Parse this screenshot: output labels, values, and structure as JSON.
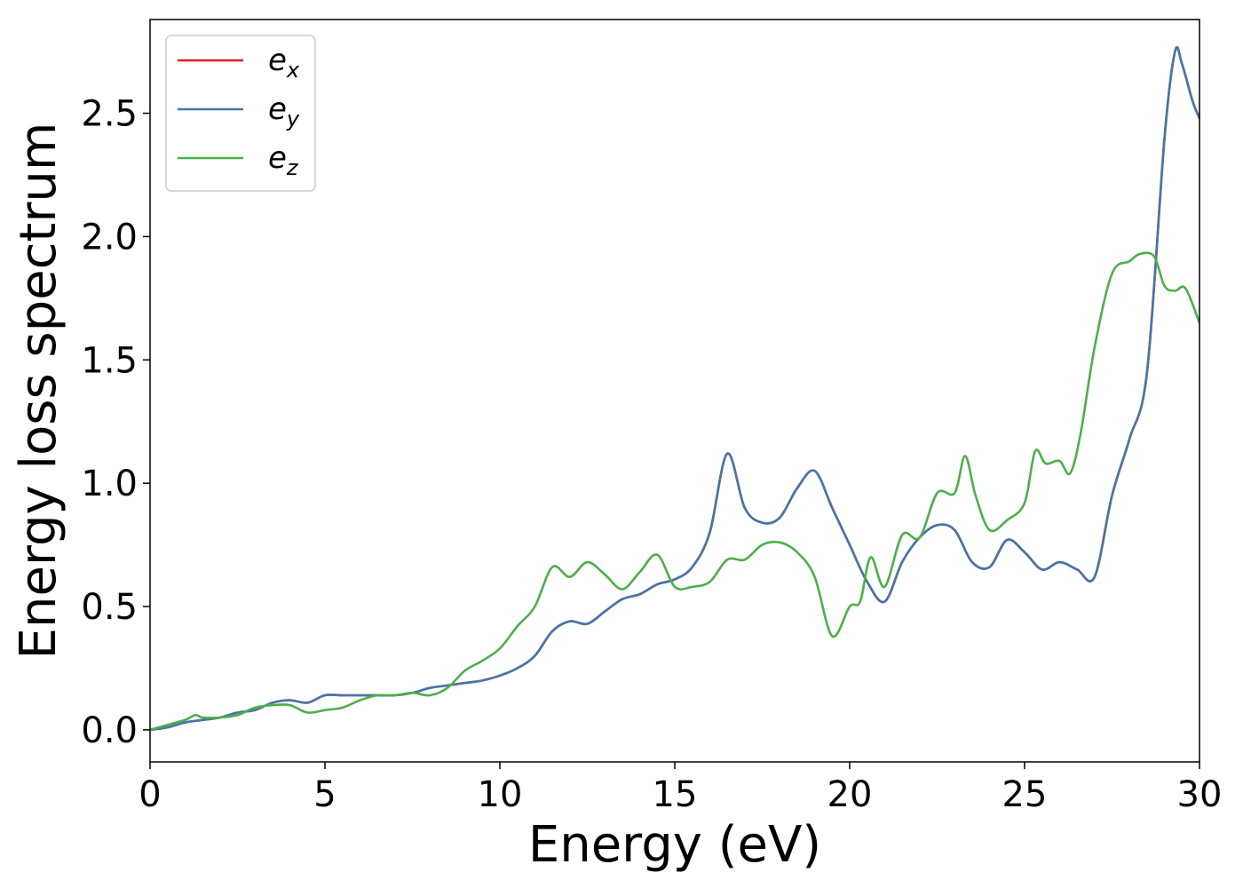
{
  "chart_data": {
    "type": "line",
    "xlabel": "Energy (eV)",
    "ylabel": "Energy loss spectrum",
    "xlim": [
      0,
      30
    ],
    "ylim": [
      -0.13,
      2.88
    ],
    "x_ticks": [
      "0",
      "5",
      "10",
      "15",
      "20",
      "25",
      "30"
    ],
    "y_ticks": [
      "0.0",
      "0.5",
      "1.0",
      "1.5",
      "2.0",
      "2.5"
    ],
    "grid": false,
    "legend_position": "top-left",
    "series": [
      {
        "name": "e_x",
        "legend_base": "e",
        "legend_sub": "x",
        "color": "#e41a1c",
        "x": [
          0,
          0.5,
          1,
          1.5,
          2,
          2.5,
          3,
          3.5,
          4,
          4.5,
          5,
          5.5,
          6,
          6.5,
          7,
          7.5,
          8,
          8.5,
          9,
          9.5,
          10,
          10.5,
          11,
          11.5,
          12,
          12.5,
          13,
          13.5,
          14,
          14.5,
          15,
          15.5,
          16,
          16.5,
          17,
          17.5,
          18,
          18.5,
          19,
          19.5,
          20,
          20.5,
          21,
          21.5,
          22,
          22.5,
          23,
          23.5,
          24,
          24.5,
          25,
          25.5,
          26,
          26.5,
          27,
          27.5,
          28,
          28.5,
          29,
          29.3,
          29.5,
          29.8,
          30
        ],
        "y": [
          0,
          0.01,
          0.03,
          0.04,
          0.05,
          0.07,
          0.08,
          0.11,
          0.12,
          0.11,
          0.14,
          0.14,
          0.14,
          0.14,
          0.14,
          0.15,
          0.17,
          0.18,
          0.19,
          0.2,
          0.22,
          0.25,
          0.3,
          0.4,
          0.44,
          0.43,
          0.48,
          0.53,
          0.55,
          0.59,
          0.61,
          0.66,
          0.8,
          1.12,
          0.9,
          0.84,
          0.86,
          0.98,
          1.05,
          0.9,
          0.75,
          0.6,
          0.52,
          0.68,
          0.78,
          0.83,
          0.81,
          0.68,
          0.66,
          0.77,
          0.72,
          0.65,
          0.68,
          0.65,
          0.62,
          0.95,
          1.18,
          1.45,
          2.4,
          2.75,
          2.7,
          2.55,
          2.48
        ]
      },
      {
        "name": "e_y",
        "legend_base": "e",
        "legend_sub": "y",
        "color": "#4477aa",
        "x": [
          0,
          0.5,
          1,
          1.5,
          2,
          2.5,
          3,
          3.5,
          4,
          4.5,
          5,
          5.5,
          6,
          6.5,
          7,
          7.5,
          8,
          8.5,
          9,
          9.5,
          10,
          10.5,
          11,
          11.5,
          12,
          12.5,
          13,
          13.5,
          14,
          14.5,
          15,
          15.5,
          16,
          16.5,
          17,
          17.5,
          18,
          18.5,
          19,
          19.5,
          20,
          20.5,
          21,
          21.5,
          22,
          22.5,
          23,
          23.5,
          24,
          24.5,
          25,
          25.5,
          26,
          26.5,
          27,
          27.5,
          28,
          28.5,
          29,
          29.3,
          29.5,
          29.8,
          30
        ],
        "y": [
          0,
          0.01,
          0.03,
          0.04,
          0.05,
          0.07,
          0.08,
          0.11,
          0.12,
          0.11,
          0.14,
          0.14,
          0.14,
          0.14,
          0.14,
          0.15,
          0.17,
          0.18,
          0.19,
          0.2,
          0.22,
          0.25,
          0.3,
          0.4,
          0.44,
          0.43,
          0.48,
          0.53,
          0.55,
          0.59,
          0.61,
          0.66,
          0.8,
          1.12,
          0.9,
          0.84,
          0.86,
          0.98,
          1.05,
          0.9,
          0.75,
          0.6,
          0.52,
          0.68,
          0.78,
          0.83,
          0.81,
          0.68,
          0.66,
          0.77,
          0.72,
          0.65,
          0.68,
          0.65,
          0.62,
          0.95,
          1.18,
          1.45,
          2.4,
          2.75,
          2.7,
          2.55,
          2.48
        ]
      },
      {
        "name": "e_z",
        "legend_base": "e",
        "legend_sub": "z",
        "color": "#4daf4a",
        "x": [
          0,
          0.5,
          1,
          1.3,
          1.5,
          2,
          2.5,
          3,
          3.5,
          4,
          4.5,
          5,
          5.5,
          6,
          6.5,
          7,
          7.5,
          8,
          8.5,
          9,
          9.5,
          10,
          10.5,
          11,
          11.5,
          12,
          12.5,
          13,
          13.5,
          14,
          14.5,
          15,
          15.5,
          16,
          16.5,
          17,
          17.5,
          18,
          18.5,
          19,
          19.5,
          20,
          20.3,
          20.6,
          21,
          21.5,
          22,
          22.5,
          23,
          23.3,
          23.6,
          24,
          24.5,
          25,
          25.3,
          25.6,
          26,
          26.3,
          26.6,
          27,
          27.5,
          28,
          28.3,
          28.7,
          29,
          29.3,
          29.6,
          30
        ],
        "y": [
          0,
          0.02,
          0.04,
          0.06,
          0.05,
          0.05,
          0.06,
          0.09,
          0.1,
          0.1,
          0.07,
          0.08,
          0.09,
          0.12,
          0.14,
          0.14,
          0.15,
          0.14,
          0.17,
          0.24,
          0.28,
          0.33,
          0.42,
          0.5,
          0.66,
          0.62,
          0.68,
          0.63,
          0.57,
          0.64,
          0.71,
          0.58,
          0.58,
          0.6,
          0.69,
          0.69,
          0.75,
          0.76,
          0.72,
          0.62,
          0.38,
          0.5,
          0.52,
          0.7,
          0.58,
          0.79,
          0.78,
          0.96,
          0.96,
          1.11,
          0.95,
          0.81,
          0.85,
          0.92,
          1.13,
          1.08,
          1.09,
          1.04,
          1.2,
          1.55,
          1.85,
          1.9,
          1.93,
          1.92,
          1.8,
          1.78,
          1.79,
          1.65
        ]
      }
    ]
  }
}
